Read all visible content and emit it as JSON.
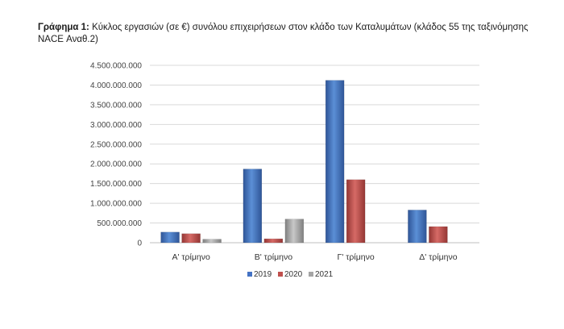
{
  "caption": {
    "label": "Γράφημα 1:",
    "text": "Κύκλος εργασιών (σε €) συνόλου επιχειρήσεων στον κλάδο των Καταλυμάτων (κλάδος 55 της ταξινόμησης NACE Αναθ.2)"
  },
  "chart_data": {
    "type": "bar",
    "title": "",
    "xlabel": "",
    "ylabel": "",
    "categories": [
      "Α' τρίμηνο",
      "Β' τρίμηνο",
      "Γ' τρίμηνο",
      "Δ' τρίμηνο"
    ],
    "series": [
      {
        "name": "2019",
        "color": "#4472C4",
        "values": [
          270000000,
          1870000000,
          4120000000,
          830000000
        ]
      },
      {
        "name": "2020",
        "color": "#C0504D",
        "values": [
          230000000,
          100000000,
          1600000000,
          410000000
        ]
      },
      {
        "name": "2021",
        "color": "#A5A5A5",
        "values": [
          90000000,
          600000000,
          null,
          null
        ]
      }
    ],
    "ylim": [
      0,
      4500000000
    ],
    "yticks": [
      "0",
      "500.000.000",
      "1.000.000.000",
      "1.500.000.000",
      "2.000.000.000",
      "2.500.000.000",
      "3.000.000.000",
      "3.500.000.000",
      "4.000.000.000",
      "4.500.000.000"
    ],
    "grid": true,
    "legend": "bottom"
  }
}
